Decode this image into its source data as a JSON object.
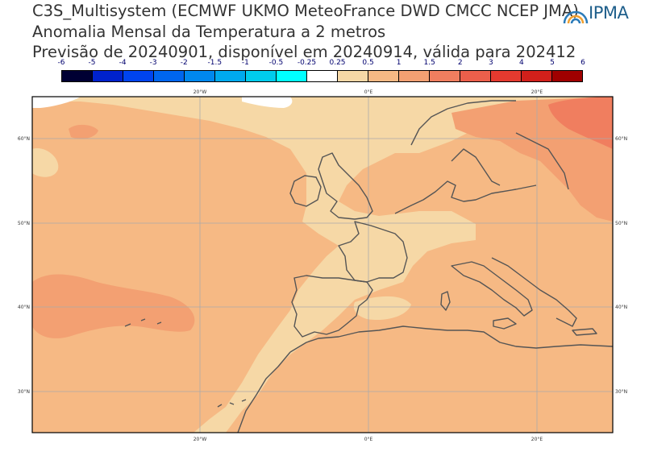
{
  "header": {
    "line1": "C3S_Multisystem (ECMWF UKMO MeteoFrance DWD CMCC NCEP JMA)",
    "line2": "Anomalia Mensal da Temperatura a 2 metros",
    "line3": "Previsão de 20240901, disponível em 20240914, válida para 202412"
  },
  "logo": {
    "text": "IPMA",
    "icon": "ipma-sun-logo-icon"
  },
  "colorbar": {
    "labels": [
      "-6",
      "-5",
      "-4",
      "-3",
      "-2",
      "-1.5",
      "-1",
      "-0.5",
      "-0.25",
      "0.25",
      "0.5",
      "1",
      "1.5",
      "2",
      "3",
      "4",
      "5",
      "6"
    ],
    "colors": [
      "#000033",
      "#0022cc",
      "#0044ee",
      "#0066ee",
      "#0088ee",
      "#00aaee",
      "#00cced",
      "#00ffff",
      "#ffffff",
      "#f6d8a6",
      "#f6b984",
      "#f3a072",
      "#f07e5f",
      "#ec5f4b",
      "#e43a2f",
      "#d1201b",
      "#a00000"
    ]
  },
  "map": {
    "lon_labels": [
      "20°W",
      "0°E",
      "20°E"
    ],
    "lat_labels": [
      "60°N",
      "50°N",
      "40°N",
      "30°N"
    ],
    "fill_colors": {
      "base": "#f6b984",
      "light": "#f6d8a6",
      "warm": "#f3a072",
      "warmer": "#f07e5f",
      "white": "#ffffff",
      "coast": "#555555",
      "grid": "#aaaaaa"
    }
  }
}
